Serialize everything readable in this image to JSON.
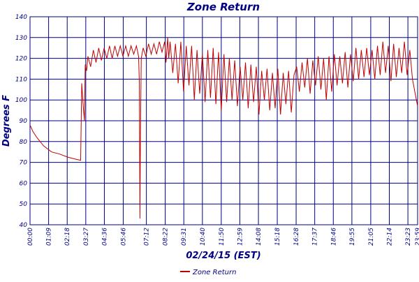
{
  "chart_data": {
    "type": "line",
    "title": "Zone Return",
    "xlabel": "02/24/15 (EST)",
    "ylabel": "Degrees F",
    "x": [
      0,
      10,
      25,
      50,
      80,
      110,
      140,
      170,
      188,
      192,
      197,
      202,
      205,
      210,
      215,
      225,
      235,
      245,
      255,
      265,
      275,
      285,
      295,
      305,
      315,
      325,
      335,
      345,
      355,
      365,
      375,
      385,
      395,
      403,
      406,
      408,
      410,
      413,
      420,
      430,
      440,
      450,
      460,
      470,
      480,
      490,
      500,
      505,
      511,
      515,
      520,
      530,
      540,
      550,
      560,
      570,
      580,
      590,
      600,
      610,
      620,
      630,
      640,
      650,
      660,
      670,
      680,
      690,
      700,
      710,
      720,
      730,
      740,
      750,
      760,
      770,
      780,
      790,
      800,
      810,
      820,
      830,
      840,
      850,
      860,
      870,
      880,
      890,
      900,
      910,
      920,
      930,
      940,
      950,
      960,
      970,
      980,
      990,
      1000,
      1010,
      1020,
      1030,
      1040,
      1050,
      1060,
      1070,
      1080,
      1090,
      1100,
      1110,
      1120,
      1130,
      1140,
      1150,
      1160,
      1170,
      1180,
      1190,
      1200,
      1210,
      1220,
      1230,
      1240,
      1250,
      1260,
      1270,
      1280,
      1290,
      1300,
      1310,
      1320,
      1330,
      1340,
      1350,
      1360,
      1370,
      1380,
      1390,
      1400,
      1410,
      1420,
      1430,
      1439
    ],
    "series": [
      {
        "name": "Zone Return",
        "color": "#c00000",
        "values": [
          88,
          85,
          82,
          78,
          75,
          74,
          72.5,
          71.5,
          71,
          108,
          98,
          90,
          117,
          114,
          121,
          116,
          124,
          118,
          125,
          119,
          125,
          120,
          126,
          120,
          126,
          121,
          126,
          121,
          126,
          121,
          126,
          122,
          126,
          121,
          108,
          43,
          84,
          120,
          125,
          121,
          127,
          122,
          127,
          122,
          128,
          123,
          128,
          118,
          130,
          120,
          128,
          113,
          127,
          108,
          128,
          104,
          126,
          107,
          126,
          100,
          124,
          103,
          122,
          99,
          124,
          101,
          125,
          98,
          123,
          95,
          122,
          99,
          120,
          100,
          119,
          97,
          116,
          100,
          118,
          96,
          117,
          99,
          116,
          93,
          114,
          100,
          115,
          95,
          113,
          96,
          115,
          93,
          113,
          98,
          114,
          94,
          112,
          116,
          104,
          118,
          106,
          120,
          103,
          119,
          107,
          121,
          105,
          120,
          100,
          121,
          104,
          122,
          107,
          121,
          108,
          123,
          106,
          122,
          109,
          125,
          110,
          124,
          111,
          125,
          112,
          124,
          110,
          126,
          112,
          128,
          113,
          126,
          109,
          127,
          111,
          125,
          113,
          128,
          112,
          124,
          110,
          103,
          97
        ]
      }
    ],
    "xlim": [
      0,
      1439
    ],
    "ylim": [
      40,
      140
    ],
    "yticks": [
      40,
      50,
      60,
      70,
      80,
      90,
      100,
      110,
      120,
      130,
      140
    ],
    "xticks": [
      {
        "value": 0,
        "label": "00:00"
      },
      {
        "value": 69,
        "label": "01:09"
      },
      {
        "value": 138,
        "label": "02:18"
      },
      {
        "value": 207,
        "label": "03:27"
      },
      {
        "value": 276,
        "label": "04:36"
      },
      {
        "value": 346,
        "label": "05:46"
      },
      {
        "value": 432,
        "label": "07:12"
      },
      {
        "value": 502,
        "label": "08:22"
      },
      {
        "value": 571,
        "label": "09:31"
      },
      {
        "value": 640,
        "label": "10:40"
      },
      {
        "value": 710,
        "label": "11:50"
      },
      {
        "value": 779,
        "label": "12:59"
      },
      {
        "value": 848,
        "label": "14:08"
      },
      {
        "value": 918,
        "label": "15:18"
      },
      {
        "value": 988,
        "label": "16:28"
      },
      {
        "value": 1057,
        "label": "17:37"
      },
      {
        "value": 1126,
        "label": "18:46"
      },
      {
        "value": 1195,
        "label": "19:55"
      },
      {
        "value": 1265,
        "label": "21:05"
      },
      {
        "value": 1334,
        "label": "22:14"
      },
      {
        "value": 1403,
        "label": "23:23"
      },
      {
        "value": 1439,
        "label": "23:59"
      }
    ],
    "grid": true,
    "legend": "bottom"
  }
}
